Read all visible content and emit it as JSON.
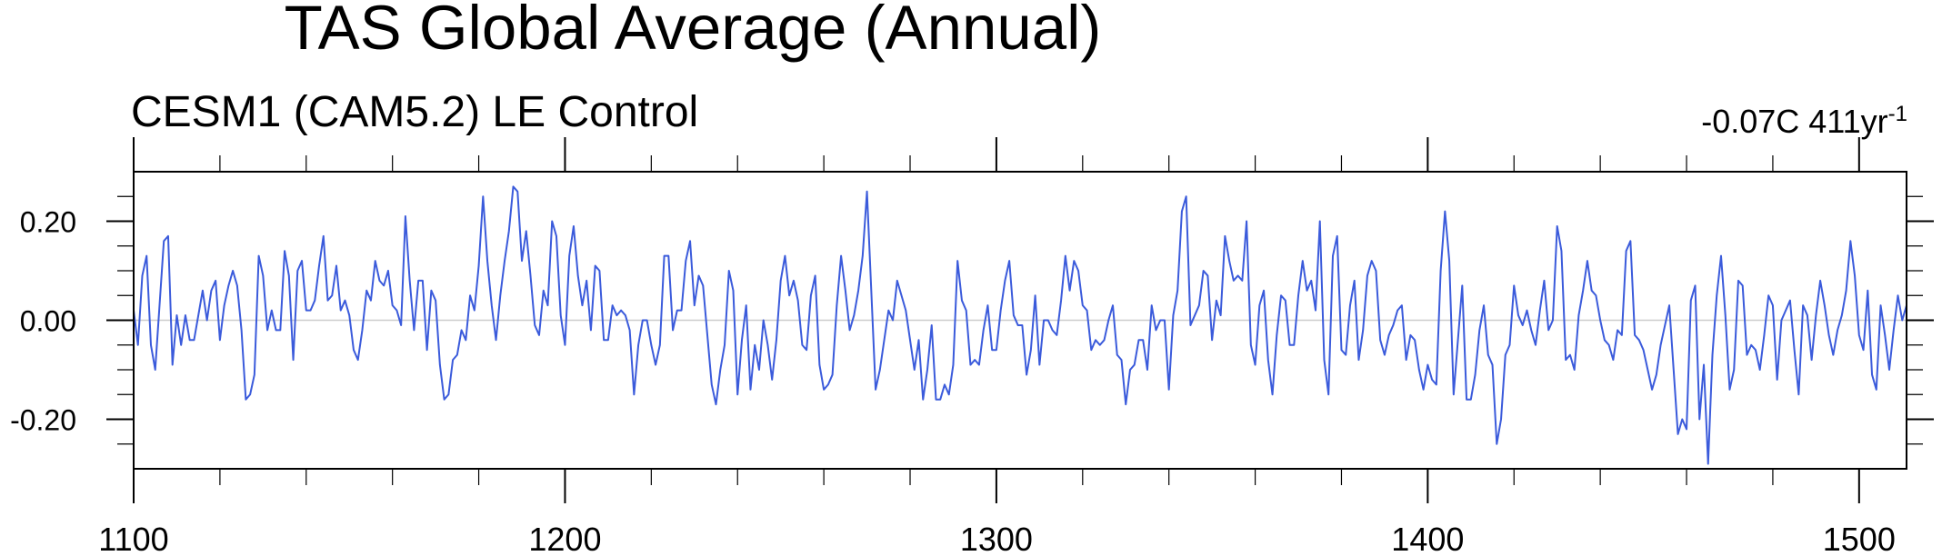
{
  "chart_data": {
    "type": "line",
    "title": "TAS Global Average (Annual)",
    "subtitle_left": "CESM1 (CAM5.2) LE Control",
    "subtitle_right": {
      "prefix": "-0.07C 411yr",
      "superscript": "-1"
    },
    "xlim": [
      1100,
      1511
    ],
    "ylim": [
      -0.3,
      0.3
    ],
    "x_ticks": [
      1100,
      1200,
      1300,
      1400,
      1500
    ],
    "x_tick_labels": [
      "1100",
      "1200",
      "1300",
      "1400",
      "1500"
    ],
    "y_ticks": [
      0.2,
      0.0,
      -0.2
    ],
    "y_tick_labels": [
      "0.20",
      "0.00",
      "-0.20"
    ],
    "reference_line": 0.0,
    "grid": false,
    "line_color": "#3b5bdb",
    "series": [
      {
        "x_start": 1100,
        "x_step": 1,
        "values": [
          0.02,
          -0.05,
          0.09,
          0.13,
          -0.05,
          -0.1,
          0.03,
          0.16,
          0.17,
          -0.09,
          0.01,
          -0.05,
          0.01,
          -0.04,
          -0.04,
          0.01,
          0.06,
          0.0,
          0.06,
          0.08,
          -0.04,
          0.03,
          0.07,
          0.1,
          0.07,
          -0.02,
          -0.16,
          -0.15,
          -0.11,
          0.13,
          0.09,
          -0.02,
          0.02,
          -0.02,
          -0.02,
          0.14,
          0.09,
          -0.08,
          0.1,
          0.12,
          0.02,
          0.02,
          0.04,
          0.11,
          0.17,
          0.04,
          0.05,
          0.11,
          0.02,
          0.04,
          0.01,
          -0.06,
          -0.08,
          -0.02,
          0.06,
          0.04,
          0.12,
          0.08,
          0.07,
          0.1,
          0.03,
          0.02,
          -0.01,
          0.21,
          0.08,
          -0.02,
          0.08,
          0.08,
          -0.06,
          0.06,
          0.04,
          -0.09,
          -0.16,
          -0.15,
          -0.08,
          -0.07,
          -0.02,
          -0.04,
          0.05,
          0.02,
          0.11,
          0.25,
          0.12,
          0.03,
          -0.04,
          0.05,
          0.12,
          0.18,
          0.27,
          0.26,
          0.12,
          0.18,
          0.09,
          -0.01,
          -0.03,
          0.06,
          0.03,
          0.2,
          0.17,
          0.01,
          -0.05,
          0.13,
          0.19,
          0.09,
          0.03,
          0.08,
          -0.02,
          0.11,
          0.1,
          -0.04,
          -0.04,
          0.03,
          0.01,
          0.02,
          0.01,
          -0.02,
          -0.15,
          -0.05,
          0.0,
          0.0,
          -0.05,
          -0.09,
          -0.05,
          0.13,
          0.13,
          -0.02,
          0.02,
          0.02,
          0.12,
          0.16,
          0.03,
          0.09,
          0.07,
          -0.03,
          -0.13,
          -0.17,
          -0.1,
          -0.05,
          0.1,
          0.06,
          -0.15,
          -0.04,
          0.03,
          -0.14,
          -0.05,
          -0.1,
          0.0,
          -0.05,
          -0.12,
          -0.04,
          0.08,
          0.13,
          0.05,
          0.08,
          0.04,
          -0.05,
          -0.06,
          0.05,
          0.09,
          -0.09,
          -0.14,
          -0.13,
          -0.11,
          0.03,
          0.13,
          0.06,
          -0.02,
          0.01,
          0.06,
          0.13,
          0.26,
          0.06,
          -0.14,
          -0.1,
          -0.04,
          0.02,
          0.0,
          0.08,
          0.05,
          0.02,
          -0.04,
          -0.1,
          -0.04,
          -0.16,
          -0.1,
          -0.01,
          -0.16,
          -0.16,
          -0.13,
          -0.15,
          -0.09,
          0.12,
          0.04,
          0.02,
          -0.09,
          -0.08,
          -0.09,
          -0.02,
          0.03,
          -0.06,
          -0.06,
          0.02,
          0.08,
          0.12,
          0.01,
          -0.01,
          -0.01,
          -0.11,
          -0.06,
          0.05,
          -0.09,
          0.0,
          0.0,
          -0.02,
          -0.03,
          0.04,
          0.13,
          0.06,
          0.12,
          0.1,
          0.03,
          0.02,
          -0.06,
          -0.04,
          -0.05,
          -0.04,
          0.0,
          0.03,
          -0.07,
          -0.08,
          -0.17,
          -0.1,
          -0.09,
          -0.04,
          -0.04,
          -0.1,
          0.03,
          -0.02,
          0.0,
          0.0,
          -0.14,
          0.01,
          0.06,
          0.22,
          0.25,
          -0.01,
          0.01,
          0.03,
          0.1,
          0.09,
          -0.04,
          0.04,
          0.01,
          0.17,
          0.12,
          0.08,
          0.09,
          0.08,
          0.2,
          -0.05,
          -0.09,
          0.03,
          0.06,
          -0.08,
          -0.15,
          -0.03,
          0.05,
          0.04,
          -0.05,
          -0.05,
          0.05,
          0.12,
          0.06,
          0.08,
          0.02,
          0.2,
          -0.08,
          -0.15,
          0.13,
          0.17,
          -0.06,
          -0.07,
          0.03,
          0.08,
          -0.08,
          -0.02,
          0.09,
          0.12,
          0.1,
          -0.04,
          -0.07,
          -0.03,
          -0.01,
          0.02,
          0.03,
          -0.08,
          -0.03,
          -0.04,
          -0.1,
          -0.14,
          -0.09,
          -0.12,
          -0.13,
          0.1,
          0.22,
          0.12,
          -0.15,
          -0.04,
          0.07,
          -0.16,
          -0.16,
          -0.11,
          -0.02,
          0.03,
          -0.07,
          -0.09,
          -0.25,
          -0.2,
          -0.07,
          -0.05,
          0.07,
          0.01,
          -0.01,
          0.02,
          -0.02,
          -0.05,
          0.02,
          0.08,
          -0.02,
          0.0,
          0.19,
          0.14,
          -0.08,
          -0.07,
          -0.1,
          0.01,
          0.06,
          0.12,
          0.06,
          0.05,
          0.0,
          -0.04,
          -0.05,
          -0.08,
          -0.02,
          -0.03,
          0.14,
          0.16,
          -0.03,
          -0.04,
          -0.06,
          -0.1,
          -0.14,
          -0.11,
          -0.05,
          -0.01,
          0.03,
          -0.1,
          -0.23,
          -0.2,
          -0.22,
          0.04,
          0.07,
          -0.2,
          -0.09,
          -0.29,
          -0.07,
          0.05,
          0.13,
          0.01,
          -0.14,
          -0.1,
          0.08,
          0.07,
          -0.07,
          -0.05,
          -0.06,
          -0.1,
          -0.03,
          0.05,
          0.03,
          -0.12,
          0.0,
          0.02,
          0.04,
          -0.06,
          -0.15,
          0.03,
          0.01,
          -0.08,
          0.01,
          0.08,
          0.03,
          -0.03,
          -0.07,
          -0.02,
          0.01,
          0.06,
          0.16,
          0.09,
          -0.03,
          -0.06,
          0.06,
          -0.11,
          -0.14,
          0.03,
          -0.03,
          -0.1,
          -0.02,
          0.05,
          0.0,
          0.03
        ]
      }
    ]
  }
}
